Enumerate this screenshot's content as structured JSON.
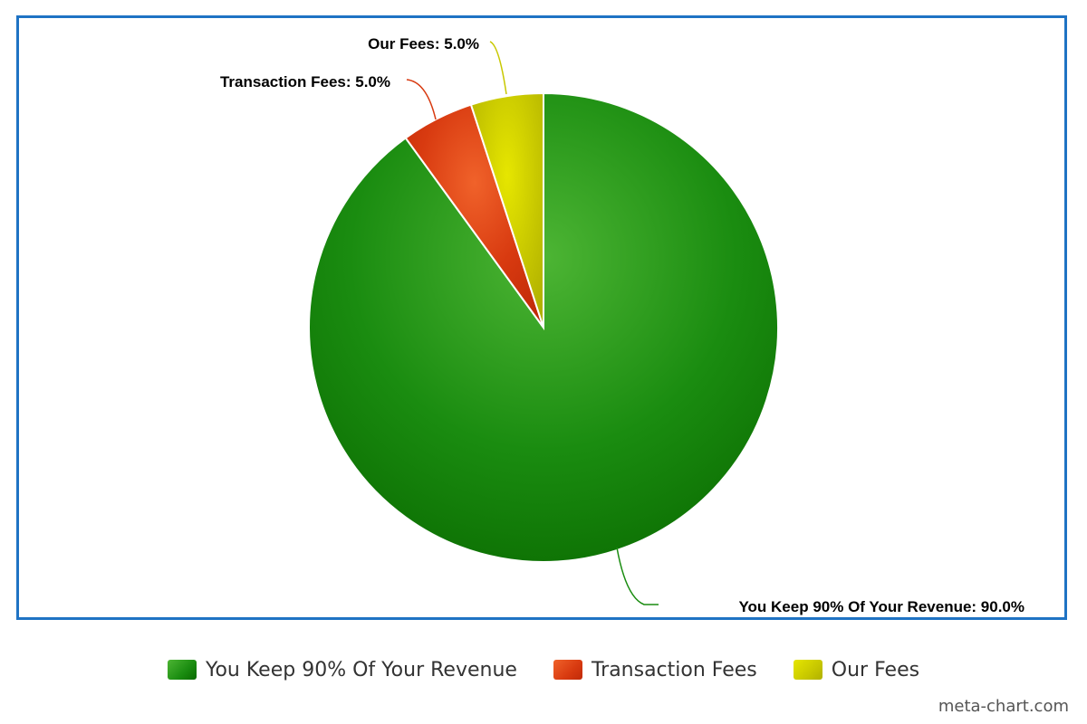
{
  "chart_data": {
    "type": "pie",
    "slices": [
      {
        "name": "You Keep 90% Of Your Revenue",
        "value": 90.0,
        "label": "You Keep 90% Of Your Revenue: 90.0%",
        "color": "#1a8c10",
        "color_light": "#4db534",
        "color_dark": "#0a6a00"
      },
      {
        "name": "Transaction Fees",
        "value": 5.0,
        "label": "Transaction Fees: 5.0%",
        "color": "#d83a10",
        "color_light": "#f0622a",
        "color_dark": "#c02a08"
      },
      {
        "name": "Our Fees",
        "value": 5.0,
        "label": "Our Fees: 5.0%",
        "color": "#c8c800",
        "color_light": "#e6e600",
        "color_dark": "#b0b000"
      }
    ],
    "legend_position": "bottom",
    "frame_color": "#1f73c4"
  },
  "legend": {
    "items": [
      {
        "label": "You Keep 90% Of Your Revenue",
        "color": "#1a8c10"
      },
      {
        "label": "Transaction Fees",
        "color": "#d83a10"
      },
      {
        "label": "Our Fees",
        "color": "#c8c800"
      }
    ]
  },
  "watermark": "meta-chart.com"
}
